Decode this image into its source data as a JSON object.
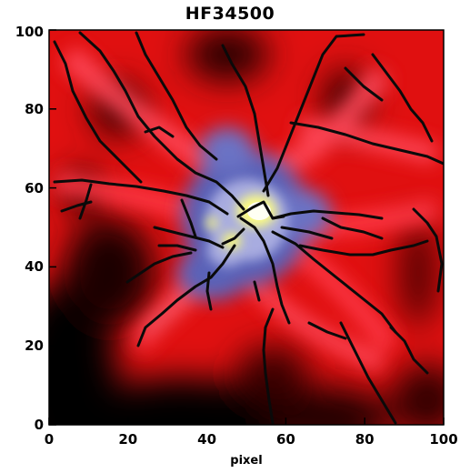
{
  "figure": {
    "title": "HF34500",
    "xlabel": "pixel",
    "ylabel": ""
  },
  "axes": {
    "x_ticks": [
      "0",
      "20",
      "40",
      "60",
      "80",
      "100"
    ],
    "y_ticks": [
      "0",
      "20",
      "40",
      "60",
      "80",
      "100"
    ]
  },
  "image": {
    "description_kind": "false-color density map with dark filamentary ridge lines",
    "colormap": [
      "#000000",
      "#5a0000",
      "#c00000",
      "#ff1a1a",
      "#ff5a6a",
      "#6a70c8",
      "#b8bce8",
      "#ffff90",
      "#ffffff"
    ],
    "filament_color": "#0a0a0a"
  }
}
